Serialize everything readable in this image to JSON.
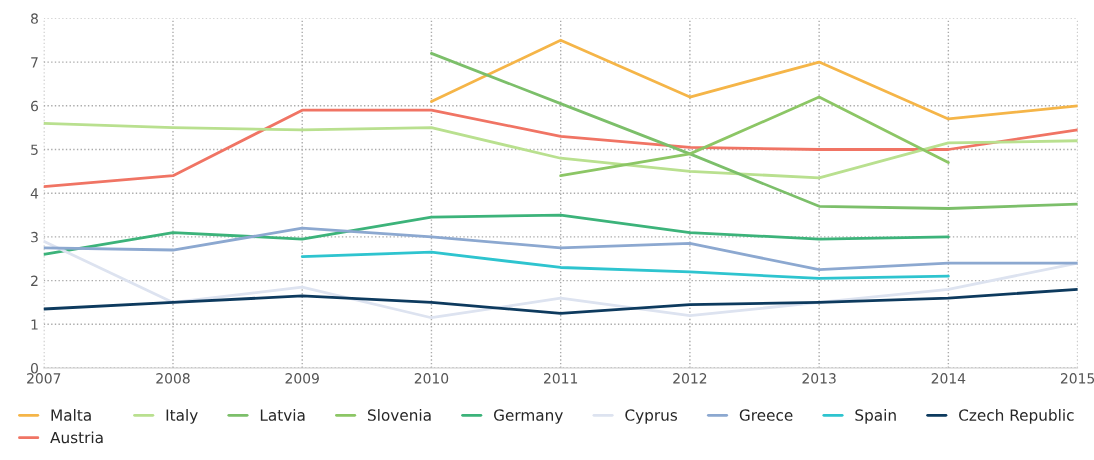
{
  "chart_data": {
    "type": "line",
    "x": [
      2007,
      2008,
      2009,
      2010,
      2011,
      2012,
      2013,
      2014,
      2015
    ],
    "series": [
      {
        "name": "Malta",
        "color": "#f5b548",
        "values": [
          null,
          null,
          null,
          6.1,
          7.5,
          6.2,
          7.0,
          5.7,
          6.0
        ]
      },
      {
        "name": "Austria",
        "color": "#f07464",
        "values": [
          4.15,
          4.4,
          5.9,
          5.9,
          5.3,
          5.05,
          5.0,
          5.0,
          5.45
        ]
      },
      {
        "name": "Italy",
        "color": "#b9e08f",
        "values": [
          5.6,
          5.5,
          5.45,
          5.5,
          4.8,
          4.5,
          4.35,
          5.15,
          5.2
        ]
      },
      {
        "name": "Latvia",
        "color": "#7cbf6a",
        "values": [
          null,
          null,
          null,
          7.2,
          6.05,
          4.9,
          3.7,
          3.65,
          3.75
        ]
      },
      {
        "name": "Slovenia",
        "color": "#8cc665",
        "values": [
          null,
          null,
          null,
          null,
          4.4,
          4.9,
          6.2,
          4.7,
          null
        ]
      },
      {
        "name": "Germany",
        "color": "#3cb37a",
        "values": [
          2.6,
          3.1,
          2.95,
          3.45,
          3.5,
          3.1,
          2.95,
          3.0,
          null
        ]
      },
      {
        "name": "Cyprus",
        "color": "#dde3f0",
        "values": [
          2.9,
          1.5,
          1.85,
          1.15,
          1.6,
          1.2,
          1.5,
          1.8,
          2.4
        ]
      },
      {
        "name": "Greece",
        "color": "#8ca8d0",
        "values": [
          2.75,
          2.7,
          3.2,
          3.0,
          2.75,
          2.85,
          2.25,
          2.4,
          2.4
        ]
      },
      {
        "name": "Spain",
        "color": "#2ec4cf",
        "values": [
          null,
          null,
          2.55,
          2.65,
          2.3,
          2.2,
          2.05,
          2.1,
          null
        ]
      },
      {
        "name": "Czech Republic",
        "color": "#0d3a5e",
        "values": [
          1.35,
          1.5,
          1.65,
          1.5,
          1.25,
          1.45,
          1.5,
          1.6,
          1.8
        ]
      }
    ],
    "xlim": [
      2007,
      2015
    ],
    "xticks": [
      2007,
      2008,
      2009,
      2010,
      2011,
      2012,
      2013,
      2014,
      2015
    ],
    "ylim": [
      0,
      8
    ],
    "yticks": [
      0,
      1,
      2,
      3,
      4,
      5,
      6,
      7,
      8
    ],
    "grid": true,
    "legend": "bottom",
    "line_style": "solid",
    "marker": "none"
  }
}
